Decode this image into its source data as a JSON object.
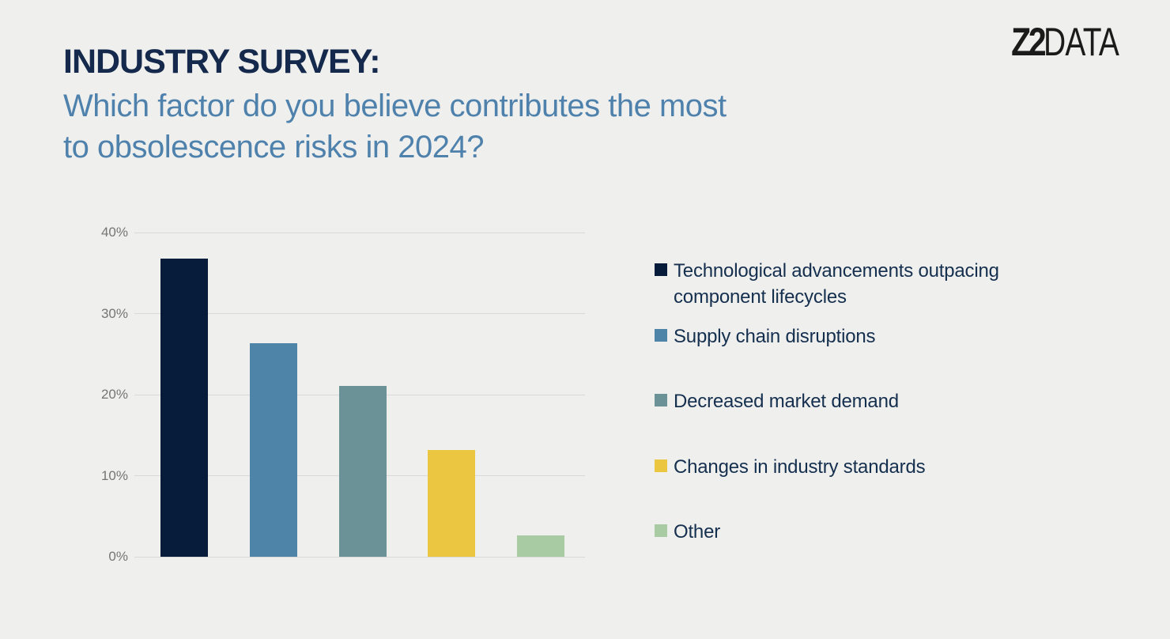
{
  "header": {
    "logo_bold": "Z2",
    "logo_light": "DATA",
    "title": "INDUSTRY SURVEY:",
    "subtitle_line1": "Which factor do you believe contributes the most",
    "subtitle_line2": "to obsolescence risks in 2024?"
  },
  "colors": {
    "background": "#efefee",
    "title_text": "#14294b",
    "subtitle_text": "#4e81ab",
    "legend_text": "#152f4e",
    "axis_label": "#757575",
    "gridline": "#d9d9d9"
  },
  "chart_data": {
    "type": "bar",
    "title": "Which factor do you believe contributes the most to obsolescence risks in 2024?",
    "categories": [
      "Technological advancements outpacing component lifecycles",
      "Supply chain disruptions",
      "Decreased market demand",
      "Changes in industry standards",
      "Other"
    ],
    "values": [
      36.8,
      26.3,
      21.1,
      13.2,
      2.6
    ],
    "unit": "%",
    "series_colors": [
      "#061c3a",
      "#4d84a8",
      "#6b9397",
      "#ebc640",
      "#a9cba4"
    ],
    "xlabel": "",
    "ylabel": "",
    "ylim": [
      0,
      40
    ],
    "y_ticks": [
      "0%",
      "10%",
      "20%",
      "30%",
      "40%"
    ],
    "grid": true,
    "legend_position": "right",
    "legend_entries": [
      "Technological advancements outpacing component lifecycles",
      "Supply chain disruptions",
      "Decreased market demand",
      "Changes in industry standards",
      "Other"
    ]
  }
}
